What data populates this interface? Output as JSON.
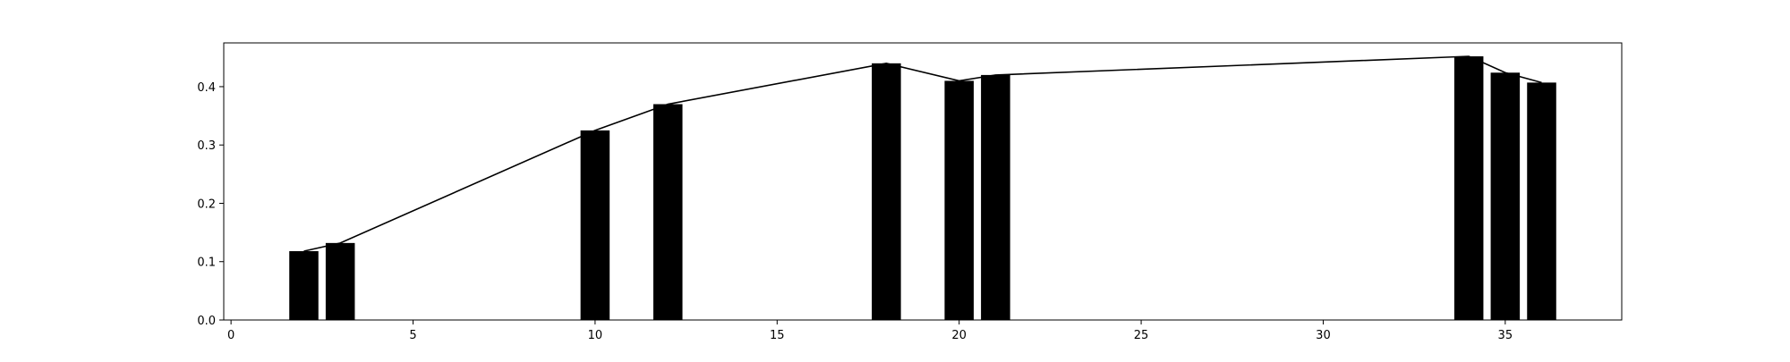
{
  "chart_data": {
    "type": "bar",
    "title": "",
    "xlabel": "",
    "ylabel": "",
    "xlim": [
      -0.2,
      38.2
    ],
    "ylim": [
      0,
      0.475
    ],
    "grid": false,
    "x_ticks": [
      {
        "value": 0,
        "label": "0"
      },
      {
        "value": 5,
        "label": "5"
      },
      {
        "value": 10,
        "label": "10"
      },
      {
        "value": 15,
        "label": "15"
      },
      {
        "value": 20,
        "label": "20"
      },
      {
        "value": 25,
        "label": "25"
      },
      {
        "value": 30,
        "label": "30"
      },
      {
        "value": 35,
        "label": "35"
      }
    ],
    "y_ticks": [
      {
        "value": 0.0,
        "label": "0.0"
      },
      {
        "value": 0.1,
        "label": "0.1"
      },
      {
        "value": 0.2,
        "label": "0.2"
      },
      {
        "value": 0.3,
        "label": "0.3"
      },
      {
        "value": 0.4,
        "label": "0.4"
      }
    ],
    "bar_width": 0.8,
    "series": [
      {
        "kind": "bar",
        "color": "#000000",
        "x": [
          2,
          3,
          10,
          12,
          18,
          20,
          21,
          34,
          35,
          36
        ],
        "values": [
          0.118,
          0.132,
          0.325,
          0.37,
          0.44,
          0.41,
          0.42,
          0.452,
          0.424,
          0.407
        ]
      },
      {
        "kind": "line",
        "color": "#000000",
        "x": [
          2,
          3,
          10,
          12,
          18,
          20,
          21,
          34,
          35,
          36
        ],
        "values": [
          0.118,
          0.132,
          0.325,
          0.37,
          0.44,
          0.41,
          0.42,
          0.452,
          0.424,
          0.407
        ]
      }
    ]
  }
}
